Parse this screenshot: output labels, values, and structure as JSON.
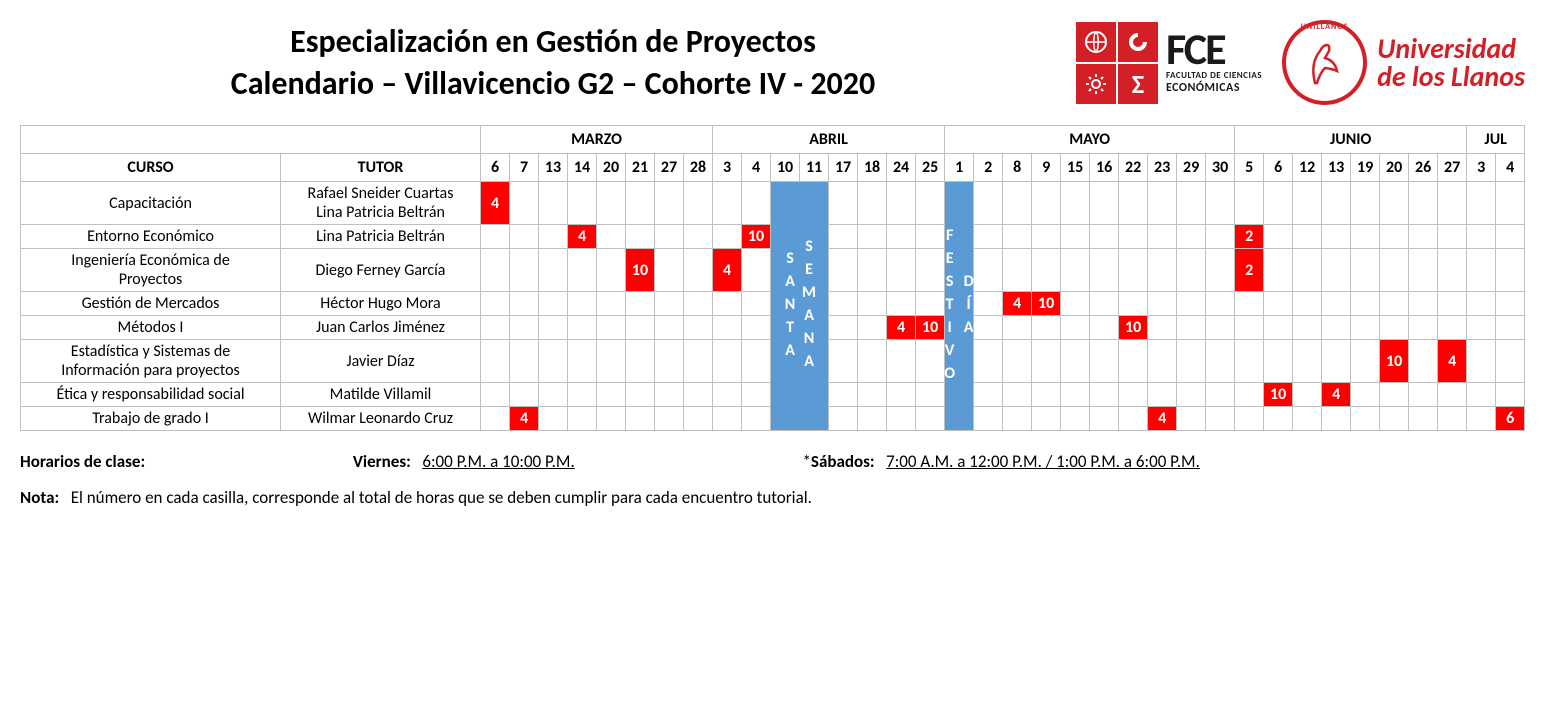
{
  "header": {
    "title_line1": "Especialización en Gestión de Proyectos",
    "title_line2": "Calendario – Villavicencio G2 – Cohorte IV - 2020",
    "logo_fce": {
      "big": "FCE",
      "small1": "FACULTAD DE CIENCIAS",
      "small2": "ECONÓMICAS"
    },
    "logo_uni": {
      "line1": "Universidad",
      "line2": "de los Llanos",
      "circle_text": "UNILLANOS"
    }
  },
  "months": [
    {
      "label": "MARZO",
      "span": 8
    },
    {
      "label": "ABRIL",
      "span": 8
    },
    {
      "label": "MAYO",
      "span": 10
    },
    {
      "label": "JUNIO",
      "span": 8
    },
    {
      "label": "JUL",
      "span": 2
    }
  ],
  "header_row": {
    "curso": "CURSO",
    "tutor": "TUTOR"
  },
  "days": [
    "6",
    "7",
    "13",
    "14",
    "20",
    "21",
    "27",
    "28",
    "3",
    "4",
    "10",
    "11",
    "17",
    "18",
    "24",
    "25",
    "1",
    "2",
    "8",
    "9",
    "15",
    "16",
    "22",
    "23",
    "29",
    "30",
    "5",
    "6",
    "12",
    "13",
    "19",
    "20",
    "26",
    "27",
    "3",
    "4"
  ],
  "special_columns": {
    "semana_santa": {
      "start": 10,
      "span": 2,
      "label": "SEMANA SANTA",
      "color_bg": "#5b9bd5",
      "color_fg": "#ffffff"
    },
    "dia_festivo": {
      "start": 16,
      "span": 1,
      "label": "DÍA FESTIVO",
      "color_bg": "#5b9bd5",
      "color_fg": "#ffffff"
    }
  },
  "courses": [
    {
      "name": "Capacitación",
      "tutor_lines": [
        "Rafael Sneider Cuartas",
        "Lina Patricia Beltrán"
      ],
      "cells": {
        "0": "4"
      }
    },
    {
      "name": "Entorno Económico",
      "tutor_lines": [
        "Lina Patricia Beltrán"
      ],
      "cells": {
        "3": "4",
        "9": "10",
        "26": "2"
      }
    },
    {
      "name": "Ingeniería Económica de Proyectos",
      "tutor_lines": [
        "Diego Ferney García"
      ],
      "cells": {
        "5": "10",
        "8": "4",
        "26": "2"
      }
    },
    {
      "name": "Gestión de Mercados",
      "tutor_lines": [
        "Héctor Hugo Mora"
      ],
      "cells": {
        "18": "4",
        "19": "10"
      }
    },
    {
      "name": "Métodos I",
      "tutor_lines": [
        "Juan Carlos Jiménez"
      ],
      "cells": {
        "14": "4",
        "15": "10",
        "22": "10"
      }
    },
    {
      "name": "Estadística y Sistemas de Información para proyectos",
      "tutor_lines": [
        "Javier Díaz"
      ],
      "cells": {
        "31": "10",
        "33": "4"
      }
    },
    {
      "name": "Ética y responsabilidad social",
      "tutor_lines": [
        "Matilde Villamil"
      ],
      "cells": {
        "27": "10",
        "29": "4"
      }
    },
    {
      "name": "Trabajo de grado I",
      "tutor_lines": [
        "Wilmar Leonardo Cruz"
      ],
      "cells": {
        "1": "4",
        "23": "4",
        "35": "6"
      }
    }
  ],
  "footer": {
    "horarios_label": "Horarios de clase:",
    "viernes_label": "Viernes:",
    "viernes_time": "6:00 P.M. a 10:00 P.M.",
    "sabados_prefix": "*",
    "sabados_label": "Sábados:",
    "sabados_time": "7:00 A.M. a 12:00 P.M. / 1:00 P.M. a 6:00 P.M.",
    "nota_label": "Nota:",
    "nota_text": "El número en cada casilla, corresponde al total de horas que se deben cumplir para cada encuentro tutorial."
  },
  "style": {
    "red_cell_bg": "#ff0000",
    "red_cell_fg": "#ffffff",
    "blue_cell_bg": "#5b9bd5",
    "border_color": "#bfbfbf",
    "title_color": "#000000",
    "uni_red": "#d32027"
  }
}
